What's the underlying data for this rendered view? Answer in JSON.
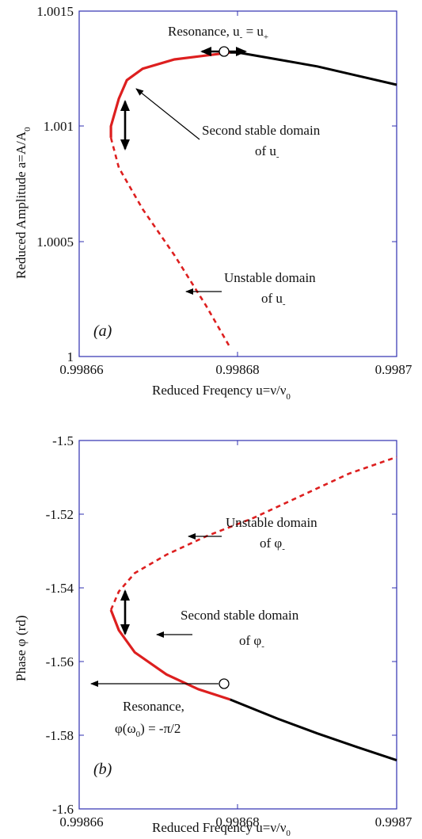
{
  "chart_data": [
    {
      "panel": "(a)",
      "type": "line",
      "xlabel": "Reduced Freqency u=ν/ν",
      "xlabel_sub": "0",
      "ylabel": "Reduced Amplitude a=A/A",
      "ylabel_sub": "0",
      "xlim": [
        0.99866,
        0.9987
      ],
      "ylim": [
        1.0,
        1.0015
      ],
      "xticks": [
        "0.99866",
        "0.99868",
        "0.9987"
      ],
      "yticks": [
        "1",
        "1.0005",
        "1.001",
        "1.0015"
      ],
      "series": [
        {
          "style": "black-solid",
          "points": [
            [
              0.998679,
              1.00132
            ],
            [
              0.99868,
              1.00132
            ],
            [
              0.998685,
              1.00129
            ],
            [
              0.99869,
              1.00126
            ],
            [
              0.998695,
              1.00122
            ],
            [
              0.9987,
              1.00118
            ]
          ]
        },
        {
          "style": "red-solid",
          "points": [
            [
              0.998664,
              1.00095
            ],
            [
              0.998664,
              1.001
            ],
            [
              0.998665,
              1.00112
            ],
            [
              0.998666,
              1.0012
            ],
            [
              0.998668,
              1.00125
            ],
            [
              0.998672,
              1.00129
            ],
            [
              0.998679,
              1.00132
            ]
          ]
        },
        {
          "style": "red-dashed",
          "points": [
            [
              0.998664,
              1.00095
            ],
            [
              0.998665,
              1.00082
            ],
            [
              0.998668,
              1.00064
            ],
            [
              0.998672,
              1.00044
            ],
            [
              0.998676,
              1.00022
            ],
            [
              0.998679,
              1.00004
            ]
          ]
        }
      ],
      "annotations": {
        "resonance": "Resonance, u",
        "resonance_sub1": "-",
        "resonance_eq": " = u",
        "resonance_sub2": "+",
        "second_stable_1": "Second stable domain",
        "second_stable_2": "of u",
        "second_stable_sub": "-",
        "unstable_1": "Unstable domain",
        "unstable_2": "of u",
        "unstable_sub": "-"
      }
    },
    {
      "panel": "(b)",
      "type": "line",
      "xlabel": "Reduced Freqency u=ν/ν",
      "xlabel_sub": "0",
      "ylabel": "Phase φ (rd)",
      "xlim": [
        0.99866,
        0.9987
      ],
      "ylim": [
        -1.6,
        -1.5
      ],
      "xticks": [
        "0.99866",
        "0.99868",
        "0.9987"
      ],
      "yticks": [
        "-1.5",
        "-1.52",
        "-1.54",
        "-1.56",
        "-1.58",
        "-1.6"
      ],
      "series": [
        {
          "style": "black-solid",
          "points": [
            [
              0.998679,
              -1.5703
            ],
            [
              0.998685,
              -1.5755
            ],
            [
              0.99869,
              -1.5795
            ],
            [
              0.998695,
              -1.5832
            ],
            [
              0.9987,
              -1.5868
            ]
          ]
        },
        {
          "style": "red-solid",
          "points": [
            [
              0.998664,
              -1.546
            ],
            [
              0.998665,
              -1.5515
            ],
            [
              0.998667,
              -1.5575
            ],
            [
              0.998671,
              -1.5635
            ],
            [
              0.998675,
              -1.5675
            ],
            [
              0.998679,
              -1.5703
            ]
          ]
        },
        {
          "style": "red-dashed",
          "points": [
            [
              0.998664,
              -1.546
            ],
            [
              0.998665,
              -1.541
            ],
            [
              0.998667,
              -1.536
            ],
            [
              0.998671,
              -1.531
            ],
            [
              0.998676,
              -1.526
            ],
            [
              0.998682,
              -1.521
            ],
            [
              0.998688,
              -1.515
            ],
            [
              0.998694,
              -1.509
            ],
            [
              0.9987,
              -1.5045
            ]
          ]
        }
      ],
      "annotations": {
        "unstable_1": "Unstable domain",
        "unstable_2": "of φ",
        "unstable_sub": "-",
        "second_stable_1": "Second stable domain",
        "second_stable_2": "of φ",
        "second_stable_sub": "-",
        "resonance_1": "Resonance,",
        "resonance_2a": "φ(ω",
        "resonance_2sub": "0",
        "resonance_2b": ") = -π/2"
      }
    }
  ]
}
